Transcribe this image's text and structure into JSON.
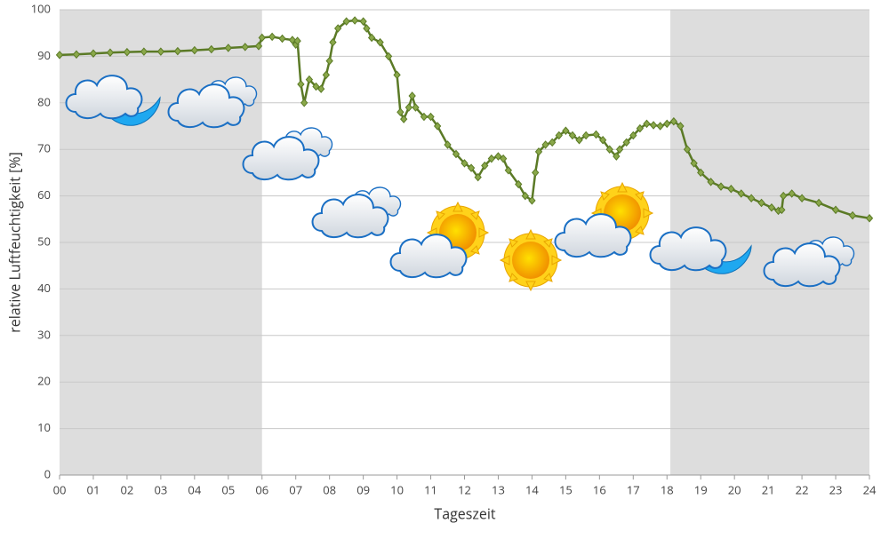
{
  "chart_data": {
    "type": "line",
    "y_label": "relative Luftfeuchtigkeit [%]",
    "x_label": "Tageszeit",
    "xlim": [
      0,
      24
    ],
    "ylim": [
      0,
      100
    ],
    "yticks": [
      0,
      10,
      20,
      30,
      40,
      50,
      60,
      70,
      80,
      90,
      100
    ],
    "xticks": [
      {
        "value": 0,
        "label": "00"
      },
      {
        "value": 1,
        "label": "01"
      },
      {
        "value": 2,
        "label": "02"
      },
      {
        "value": 3,
        "label": "03"
      },
      {
        "value": 4,
        "label": "04"
      },
      {
        "value": 5,
        "label": "05"
      },
      {
        "value": 6,
        "label": "06"
      },
      {
        "value": 7,
        "label": "07"
      },
      {
        "value": 8,
        "label": "08"
      },
      {
        "value": 9,
        "label": "09"
      },
      {
        "value": 10,
        "label": "10"
      },
      {
        "value": 11,
        "label": "11"
      },
      {
        "value": 12,
        "label": "12"
      },
      {
        "value": 13,
        "label": "13"
      },
      {
        "value": 14,
        "label": "14"
      },
      {
        "value": 15,
        "label": "15"
      },
      {
        "value": 16,
        "label": "16"
      },
      {
        "value": 17,
        "label": "17"
      },
      {
        "value": 18,
        "label": "18"
      },
      {
        "value": 19,
        "label": "19"
      },
      {
        "value": 20,
        "label": "20"
      },
      {
        "value": 21,
        "label": "21"
      },
      {
        "value": 22,
        "label": "22"
      },
      {
        "value": 23,
        "label": "23"
      },
      {
        "value": 24,
        "label": "24"
      }
    ],
    "grid": true,
    "shaded_ranges": [
      [
        0,
        6
      ],
      [
        18.1,
        24
      ]
    ],
    "shade_color": "#dddddd",
    "series": [
      {
        "color": "#5b7a26",
        "x": [
          0,
          0.5,
          1,
          1.5,
          2,
          2.5,
          3,
          3.5,
          4,
          4.5,
          5,
          5.5,
          5.9,
          6,
          6.3,
          6.6,
          6.9,
          7,
          7.05,
          7.15,
          7.25,
          7.4,
          7.6,
          7.75,
          7.9,
          8,
          8.1,
          8.25,
          8.5,
          8.75,
          9,
          9.1,
          9.25,
          9.5,
          9.75,
          10,
          10.1,
          10.2,
          10.35,
          10.45,
          10.55,
          10.8,
          11,
          11.2,
          11.5,
          11.75,
          12,
          12.2,
          12.4,
          12.6,
          12.8,
          13,
          13.15,
          13.3,
          13.6,
          13.8,
          14,
          14.1,
          14.2,
          14.4,
          14.6,
          14.8,
          15,
          15.2,
          15.4,
          15.6,
          15.9,
          16.1,
          16.3,
          16.5,
          16.6,
          16.8,
          17,
          17.2,
          17.4,
          17.6,
          17.8,
          18,
          18.2,
          18.4,
          18.6,
          18.8,
          19,
          19.3,
          19.6,
          19.9,
          20.2,
          20.5,
          20.8,
          21.1,
          21.3,
          21.4,
          21.45,
          21.7,
          22,
          22.5,
          23,
          23.5,
          24
        ],
        "values": [
          90.3,
          90.4,
          90.6,
          90.8,
          90.9,
          91,
          91,
          91.1,
          91.3,
          91.5,
          91.8,
          92,
          92.2,
          94,
          94.2,
          93.8,
          93.5,
          92.5,
          93.3,
          84,
          80,
          85,
          83.5,
          83,
          86,
          89,
          93,
          96,
          97.5,
          97.7,
          97.5,
          96,
          94,
          93,
          90,
          86,
          78,
          76.5,
          79,
          81.5,
          79,
          77,
          77,
          75,
          71,
          69,
          67,
          66,
          64,
          66.5,
          68,
          68.5,
          68,
          65.5,
          62.5,
          60,
          59,
          65,
          69.5,
          71,
          71.5,
          73,
          74,
          73,
          72,
          73,
          73.2,
          72,
          70,
          68.5,
          70,
          71.5,
          73,
          74.5,
          75.5,
          75.2,
          75,
          75.5,
          76,
          75,
          70,
          67,
          65,
          63,
          62,
          61.5,
          60.5,
          59.5,
          58.5,
          57.5,
          56.8,
          57,
          60,
          60.5,
          59.5,
          58.5,
          57,
          55.8,
          55.2
        ]
      }
    ]
  }
}
